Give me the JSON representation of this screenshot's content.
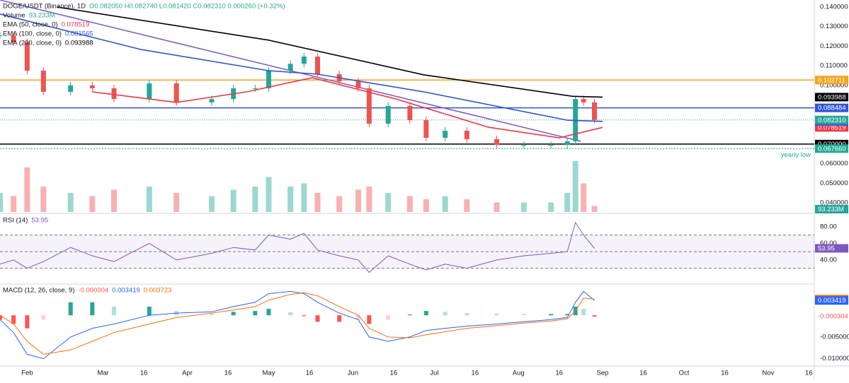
{
  "chart_data": [
    {
      "type": "candlestick",
      "title": "DOGE/USDT (Binance), 1D",
      "quote": "O0.082050 H0.082740 L0.081420 C0.082310 0.000260 (+0.32%)",
      "x": [
        -10,
        -5,
        0,
        6,
        16,
        24,
        32,
        45,
        55,
        68,
        76,
        84,
        89,
        97,
        102,
        107,
        115,
        122,
        126,
        133,
        141,
        147,
        154,
        162,
        173,
        183,
        193,
        199,
        202,
        205,
        209
      ],
      "close": [
        0.1256,
        0.122,
        0.1075,
        0.0967,
        0.1,
        0.0985,
        0.093,
        0.101,
        0.0913,
        0.093,
        0.0985,
        0.0985,
        0.1075,
        0.111,
        0.1147,
        0.1057,
        0.102,
        0.0985,
        0.0804,
        0.0895,
        0.0822,
        0.0732,
        0.0768,
        0.0725,
        0.0696,
        0.0696,
        0.0696,
        0.0714,
        0.093,
        0.0913,
        0.08231
      ],
      "close_label": "0.082310",
      "xlim": [
        -10,
        290
      ],
      "xticks": [
        {
          "value": 0,
          "label": "Feb"
        },
        {
          "value": 28,
          "label": "Mar"
        },
        {
          "value": 43,
          "label": "16"
        },
        {
          "value": 59,
          "label": "Apr"
        },
        {
          "value": 74,
          "label": "16"
        },
        {
          "value": 89,
          "label": "May"
        },
        {
          "value": 104,
          "label": "16"
        },
        {
          "value": 120,
          "label": "Jun"
        },
        {
          "value": 135,
          "label": "16"
        },
        {
          "value": 150,
          "label": "Jul"
        },
        {
          "value": 165,
          "label": "16"
        },
        {
          "value": 181,
          "label": "Aug"
        },
        {
          "value": 196,
          "label": "16"
        },
        {
          "value": 212,
          "label": "Sep"
        },
        {
          "value": 227,
          "label": "16"
        },
        {
          "value": 242,
          "label": "Oct"
        },
        {
          "value": 257,
          "label": "16"
        },
        {
          "value": 273,
          "label": "Nov"
        },
        {
          "value": 288,
          "label": "16"
        }
      ],
      "ylim": [
        0.0353,
        0.1436
      ],
      "yticks": [
        {
          "value": 0.14,
          "label": "0.140000"
        },
        {
          "value": 0.13,
          "label": "0.130000"
        },
        {
          "value": 0.12,
          "label": "0.120000"
        },
        {
          "value": 0.11,
          "label": "0.110000"
        },
        {
          "value": 0.1,
          "label": "0.100000"
        },
        {
          "value": 0.06,
          "label": "0.060000"
        },
        {
          "value": 0.05,
          "label": "0.050000"
        },
        {
          "value": 0.04,
          "label": "0.040000"
        }
      ],
      "up_color": "#26a69a",
      "down_color": "#ef5350",
      "volume": {
        "name": "Volume",
        "values": [
          300,
          250,
          700,
          400,
          300,
          250,
          350,
          400,
          300,
          250,
          350,
          400,
          550,
          400,
          450,
          300,
          250,
          350,
          400,
          300,
          250,
          200,
          250,
          200,
          150,
          150,
          150,
          300,
          800,
          450,
          93.233
        ],
        "last_label": "93.233M",
        "lim": [
          0,
          1000
        ]
      },
      "series": [
        {
          "name": "EMA (50, close, 0)",
          "color": "#f23645",
          "x": [
            24,
            55,
            81,
            105,
            136,
            170,
            196,
            212
          ],
          "values": [
            0.0967,
            0.0913,
            0.0967,
            0.1039,
            0.093,
            0.0786,
            0.0732,
            0.078519
          ]
        },
        {
          "name": "EMA (100, close, 0)",
          "color": "#2f55d4",
          "x": [
            -10,
            42,
            89,
            107,
            146,
            199,
            212
          ],
          "values": [
            0.1364,
            0.1183,
            0.1075,
            0.1057,
            0.0967,
            0.0822,
            0.081565
          ]
        },
        {
          "name": "EMA (200, close, 0)",
          "color": "#000000",
          "x": [
            11,
            89,
            146,
            201,
            212
          ],
          "values": [
            0.14,
            0.1231,
            0.1054,
            0.0944,
            0.093988
          ]
        }
      ],
      "trendline": {
        "color": "#7e57c2",
        "x": [
          -10,
          204
        ],
        "values": [
          0.1436,
          0.0714
        ]
      },
      "levels": [
        {
          "value": 0.102711,
          "color": "#f7a21b"
        },
        {
          "value": 0.088484,
          "color": "#2f55d4"
        },
        {
          "value": 0.07,
          "label": "0.070000",
          "color": "#000000"
        },
        {
          "value": 0.06766,
          "label": "0.067660",
          "color": "#22ab94",
          "note": "yearly low"
        }
      ]
    },
    {
      "type": "line",
      "title": "RSI (14)",
      "ylim": [
        11,
        96
      ],
      "yticks": [
        {
          "value": 80,
          "label": "80.00"
        },
        {
          "value": 60,
          "label": "60.00"
        },
        {
          "value": 40,
          "label": "40.00"
        }
      ],
      "levels": [
        70,
        50,
        30
      ],
      "series": [
        {
          "color": "#7e57c2",
          "values": [
            35,
            40,
            30,
            38,
            55,
            45,
            38,
            60,
            40,
            48,
            55,
            52,
            70,
            65,
            72,
            52,
            45,
            40,
            25,
            45,
            35,
            28,
            35,
            30,
            40,
            45,
            48,
            50,
            85,
            70,
            53.95
          ]
        }
      ]
    },
    {
      "type": "macd",
      "title": "MACD (12, 26, close, 9)",
      "ylim": [
        -0.0117,
        0.0072
      ],
      "yticks": [
        {
          "value": -0.005,
          "label": "-0.005000"
        },
        {
          "value": -0.01,
          "label": "-0.010000"
        }
      ],
      "histogram": [
        -0.001,
        -0.002,
        -0.003,
        -0.001,
        0.003,
        0.003,
        0.002,
        0.002,
        0.001,
        0.0003,
        0.0008,
        0.001,
        0.0015,
        0.0007,
        -0.0002,
        -0.0015,
        -0.0015,
        -0.001,
        -0.002,
        -0.001,
        0.0002,
        0.001,
        0.0008,
        0.0005,
        0.0004,
        0.0003,
        0.0003,
        0.0003,
        0.002,
        0.0015,
        -0.000304
      ],
      "hist_colors": [
        "#26a69a",
        "#b2dfdb",
        "#ff5252",
        "#ffcdd2"
      ],
      "series": [
        {
          "color": "#2962ff",
          "values": [
            -0.001,
            -0.004,
            -0.009,
            -0.01,
            -0.005,
            -0.003,
            -0.002,
            0,
            0.0005,
            0.0008,
            0.002,
            0.003,
            0.005,
            0.0055,
            0.005,
            0.003,
            0.0005,
            -0.001,
            -0.005,
            -0.006,
            -0.005,
            -0.0035,
            -0.003,
            -0.0025,
            -0.002,
            -0.0015,
            -0.001,
            -0.0005,
            0.003,
            0.0055,
            0.003419
          ]
        },
        {
          "color": "#ff6d00",
          "values": [
            0,
            -0.002,
            -0.006,
            -0.009,
            -0.008,
            -0.006,
            -0.004,
            -0.002,
            -0.0005,
            0.0005,
            0.0012,
            0.002,
            0.0035,
            0.0048,
            0.0052,
            0.0045,
            0.002,
            0,
            -0.003,
            -0.005,
            -0.0052,
            -0.0045,
            -0.0038,
            -0.003,
            -0.0024,
            -0.0018,
            -0.0013,
            -0.0008,
            0.001,
            0.004,
            0.003723
          ]
        }
      ]
    }
  ]
}
